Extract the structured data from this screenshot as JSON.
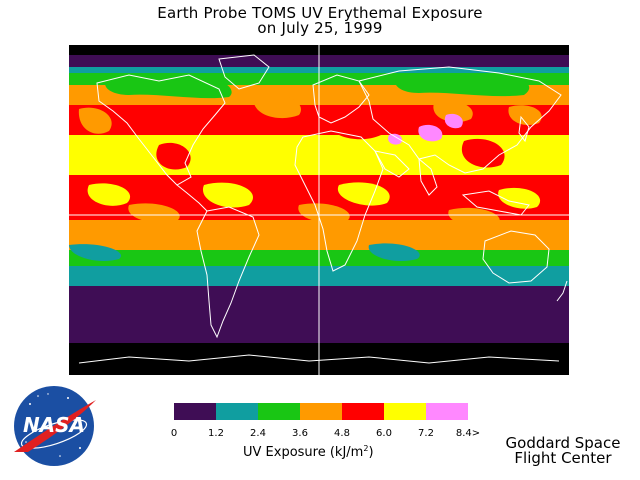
{
  "title_line1": "Earth Probe TOMS UV Erythemal Exposure",
  "title_line2": "on July 25, 1999",
  "map": {
    "meridian_lon": 0,
    "equator_lat": 0,
    "background": "#000000",
    "band_colors": {
      "0-1.2": "#3f0d55",
      "1.2-2.4": "#109ea0",
      "2.4-3.6": "#19c614",
      "3.6-4.8": "#ff9a00",
      "4.8-6.0": "#ff0000",
      "6.0-7.2": "#ffff00",
      "7.2-8.4>": "#ff88ff"
    }
  },
  "legend": {
    "colors": [
      "#3f0d55",
      "#109ea0",
      "#19c614",
      "#ff9a00",
      "#ff0000",
      "#ffff00",
      "#ff88ff"
    ],
    "ticks": [
      "0",
      "1.2",
      "2.4",
      "3.6",
      "4.8",
      "6.0",
      "7.2",
      "8.4>"
    ],
    "title_text": "UV Exposure (kJ/m",
    "title_sup": "2",
    "title_close": ")"
  },
  "credit_line1": "Goddard Space",
  "credit_line2": "Flight Center",
  "logo": {
    "text": "NASA",
    "colors": {
      "disk": "#1b4fa3",
      "swoosh": "#e02020",
      "text": "#ffffff"
    }
  }
}
